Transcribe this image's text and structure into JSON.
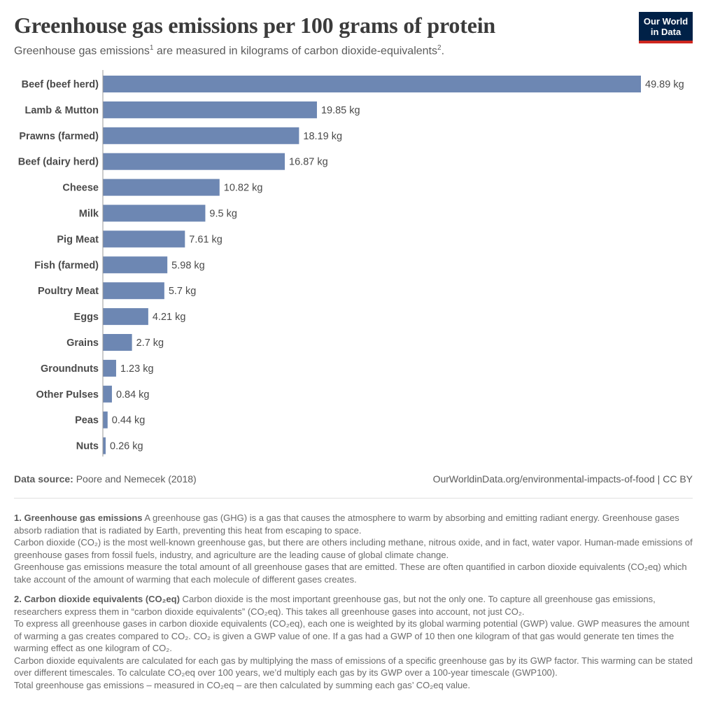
{
  "header": {
    "title": "Greenhouse gas emissions per 100 grams of protein",
    "subtitle_main": "Greenhouse gas emissions",
    "subtitle_sup1": "1",
    "subtitle_mid": " are measured in kilograms of carbon dioxide-equivalents",
    "subtitle_sup2": "2",
    "subtitle_end": ".",
    "logo_line1": "Our World",
    "logo_line2": "in Data"
  },
  "colors": {
    "bar": "#6d87b3",
    "logo_bg": "#002147",
    "logo_accent": "#ce261e"
  },
  "chart_data": {
    "type": "bar",
    "orientation": "horizontal",
    "categories": [
      "Beef (beef herd)",
      "Lamb & Mutton",
      "Prawns (farmed)",
      "Beef (dairy herd)",
      "Cheese",
      "Milk",
      "Pig Meat",
      "Fish (farmed)",
      "Poultry Meat",
      "Eggs",
      "Grains",
      "Groundnuts",
      "Other Pulses",
      "Peas",
      "Nuts"
    ],
    "values": [
      49.89,
      19.85,
      18.19,
      16.87,
      10.82,
      9.5,
      7.61,
      5.98,
      5.7,
      4.21,
      2.7,
      1.23,
      0.84,
      0.44,
      0.26
    ],
    "value_labels": [
      "49.89 kg",
      "19.85 kg",
      "18.19 kg",
      "16.87 kg",
      "10.82 kg",
      "9.5 kg",
      "7.61 kg",
      "5.98 kg",
      "5.7 kg",
      "4.21 kg",
      "2.7 kg",
      "1.23 kg",
      "0.84 kg",
      "0.44 kg",
      "0.26 kg"
    ],
    "unit": "kg",
    "xlim": [
      0,
      49.89
    ],
    "grid": false
  },
  "footer": {
    "source_label": "Data source:",
    "source_value": " Poore and Nemecek (2018)",
    "link": "OurWorldinData.org/environmental-impacts-of-food | CC BY"
  },
  "notes": [
    {
      "heading": "1. Greenhouse gas emissions",
      "lines": [
        " A greenhouse gas (GHG) is a gas that causes the atmosphere to warm by absorbing and emitting radiant energy. Greenhouse gases absorb radiation that is radiated by Earth, preventing this heat from escaping to space.",
        "Carbon dioxide (CO₂) is the most well-known greenhouse gas, but there are others including methane, nitrous oxide, and in fact, water vapor. Human-made emissions of greenhouse gases from fossil fuels, industry, and agriculture are the leading cause of global climate change.",
        "Greenhouse gas emissions measure the total amount of all greenhouse gases that are emitted. These are often quantified in carbon dioxide equivalents (CO₂eq) which take account of the amount of warming that each molecule of different gases creates."
      ]
    },
    {
      "heading": "2. Carbon dioxide equivalents (CO₂eq)",
      "lines": [
        " Carbon dioxide is the most important greenhouse gas, but not the only one. To capture all greenhouse gas emissions, researchers express them in “carbon dioxide equivalents” (CO₂eq). This takes all greenhouse gases into account, not just CO₂.",
        "To express all greenhouse gases in carbon dioxide equivalents (CO₂eq), each one is weighted by its global warming potential (GWP) value. GWP measures the amount of warming a gas creates compared to CO₂. CO₂ is given a GWP value of one. If a gas had a GWP of 10 then one kilogram of that gas would generate ten times the warming effect as one kilogram of CO₂.",
        "Carbon dioxide equivalents are calculated for each gas by multiplying the mass of emissions of a specific greenhouse gas by its GWP factor. This warming can be stated over different timescales. To calculate CO₂eq over 100 years, we’d multiply each gas by its GWP over a 100-year timescale (GWP100).",
        "Total greenhouse gas emissions – measured in CO₂eq – are then calculated by summing each gas’ CO₂eq value."
      ]
    }
  ]
}
